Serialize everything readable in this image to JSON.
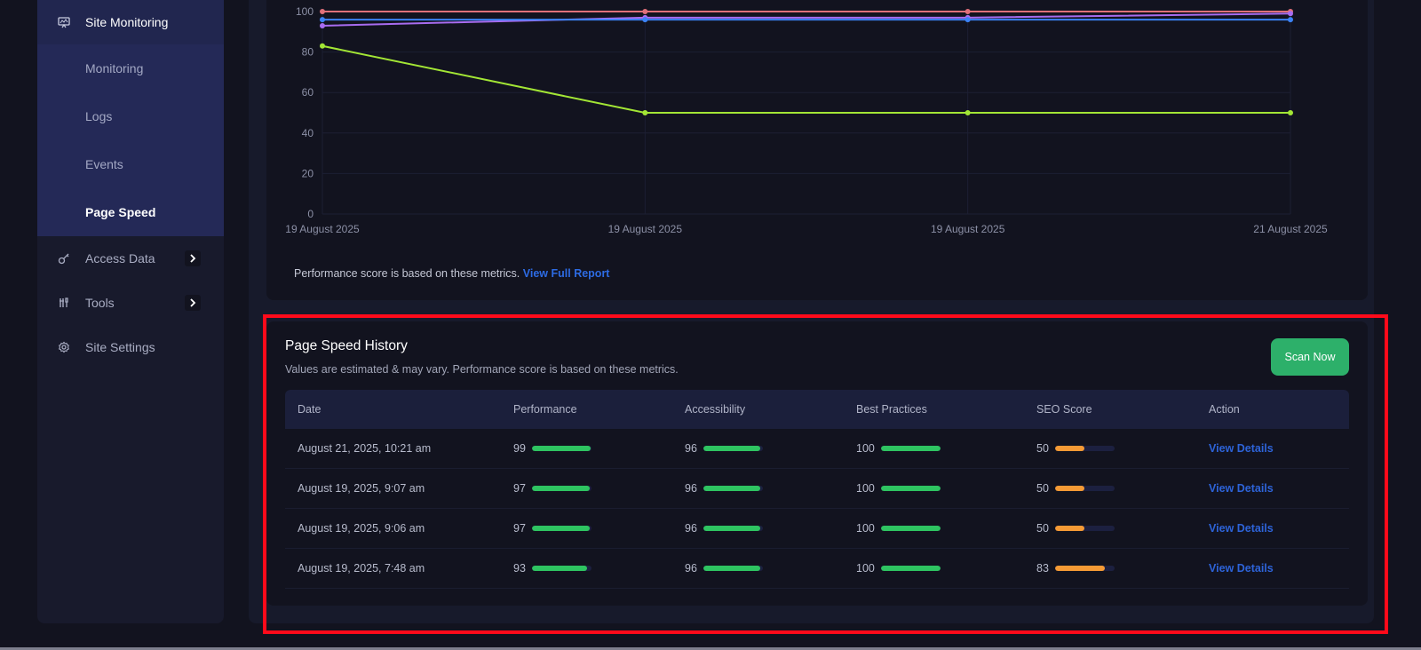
{
  "sidebar": {
    "group": {
      "label": "Site Monitoring",
      "icon": "monitor-icon",
      "children": [
        {
          "label": "Monitoring",
          "active": false
        },
        {
          "label": "Logs",
          "active": false
        },
        {
          "label": "Events",
          "active": false
        },
        {
          "label": "Page Speed",
          "active": true
        }
      ]
    },
    "items": [
      {
        "label": "Access Data",
        "icon": "key-icon",
        "has_submenu": true
      },
      {
        "label": "Tools",
        "icon": "tools-icon",
        "has_submenu": true
      },
      {
        "label": "Site Settings",
        "icon": "gear-icon",
        "has_submenu": false
      }
    ]
  },
  "chart": {
    "note": "Performance score is based on these metrics.",
    "link": "View Full Report"
  },
  "chart_data": {
    "type": "line",
    "title": "",
    "xlabel": "",
    "ylabel": "",
    "ylim": [
      0,
      100
    ],
    "yticks": [
      0,
      20,
      40,
      60,
      80,
      100
    ],
    "grid": true,
    "categories": [
      "19 August 2025",
      "19 August 2025",
      "19 August 2025",
      "21 August 2025"
    ],
    "series": [
      {
        "name": "Best Practices",
        "color": "#e0707a",
        "values": [
          100,
          100,
          100,
          100
        ]
      },
      {
        "name": "Performance",
        "color": "#a86cf0",
        "values": [
          93,
          97,
          97,
          99
        ]
      },
      {
        "name": "Accessibility",
        "color": "#3b82f6",
        "values": [
          96,
          96,
          96,
          96
        ]
      },
      {
        "name": "SEO Score",
        "color": "#a3e635",
        "values": [
          83,
          50,
          50,
          50
        ]
      }
    ]
  },
  "history": {
    "title": "Page Speed History",
    "subtitle": "Values are estimated & may vary. Performance score is based on these metrics.",
    "scan_button": "Scan Now",
    "columns": [
      "Date",
      "Performance",
      "Accessibility",
      "Best Practices",
      "SEO Score",
      "Action"
    ],
    "rows": [
      {
        "date": "August 21, 2025, 10:21 am",
        "performance": "99",
        "accessibility": "96",
        "best_practices": "100",
        "seo": "50",
        "action": "View Details"
      },
      {
        "date": "August 19, 2025, 9:07 am",
        "performance": "97",
        "accessibility": "96",
        "best_practices": "100",
        "seo": "50",
        "action": "View Details"
      },
      {
        "date": "August 19, 2025, 9:06 am",
        "performance": "97",
        "accessibility": "96",
        "best_practices": "100",
        "seo": "50",
        "action": "View Details"
      },
      {
        "date": "August 19, 2025, 7:48 am",
        "performance": "93",
        "accessibility": "96",
        "best_practices": "100",
        "seo": "83",
        "action": "View Details"
      }
    ]
  },
  "colors": {
    "good": "#2ec461",
    "average": "#f59a35",
    "accent": "#2db06a",
    "link": "#2d63d8",
    "highlight": "#ff0a1a"
  }
}
